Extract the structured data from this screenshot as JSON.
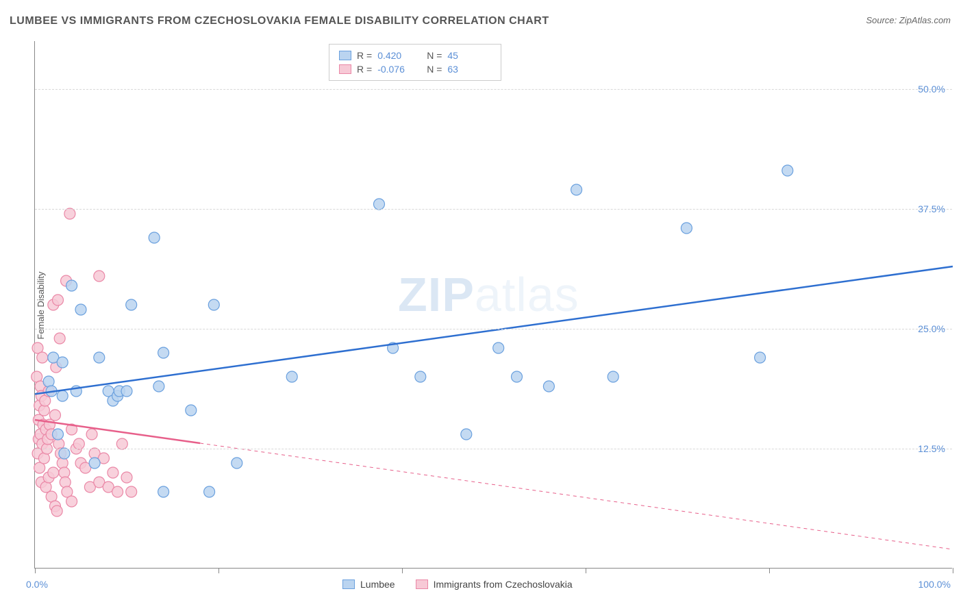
{
  "title": "LUMBEE VS IMMIGRANTS FROM CZECHOSLOVAKIA FEMALE DISABILITY CORRELATION CHART",
  "source": "Source: ZipAtlas.com",
  "y_axis_label": "Female Disability",
  "watermark_bold": "ZIP",
  "watermark_light": "atlas",
  "chart": {
    "type": "scatter",
    "background_color": "#ffffff",
    "grid_color": "#d8d8d8",
    "axis_color": "#888888",
    "tick_label_color": "#5b8fd6",
    "xlim": [
      0,
      100
    ],
    "ylim": [
      0,
      55
    ],
    "y_ticks": [
      12.5,
      25.0,
      37.5,
      50.0
    ],
    "y_tick_labels": [
      "12.5%",
      "25.0%",
      "37.5%",
      "50.0%"
    ],
    "x_ticks": [
      0,
      20,
      40,
      60,
      80,
      100
    ],
    "x_start_label": "0.0%",
    "x_end_label": "100.0%",
    "marker_radius": 8,
    "marker_stroke_width": 1.2,
    "line_width": 2.5,
    "series": [
      {
        "name": "Lumbee",
        "fill_color": "#bad4f0",
        "stroke_color": "#6aa0de",
        "line_color": "#2e6fd0",
        "R": "0.420",
        "N": "45",
        "regression": {
          "x1": 0,
          "y1": 18.2,
          "x2": 100,
          "y2": 31.5,
          "dashed": false,
          "solid_until_x": 100
        },
        "points": [
          [
            1.5,
            19.5
          ],
          [
            1.8,
            18.5
          ],
          [
            2.0,
            22.0
          ],
          [
            2.5,
            14.0
          ],
          [
            3.0,
            18.0
          ],
          [
            3.0,
            21.5
          ],
          [
            3.2,
            12.0
          ],
          [
            4.0,
            29.5
          ],
          [
            4.5,
            18.5
          ],
          [
            5.0,
            27.0
          ],
          [
            6.5,
            11.0
          ],
          [
            7.0,
            22.0
          ],
          [
            8.0,
            18.5
          ],
          [
            8.5,
            17.5
          ],
          [
            9.0,
            18.0
          ],
          [
            9.2,
            18.5
          ],
          [
            10.0,
            18.5
          ],
          [
            10.5,
            27.5
          ],
          [
            13.0,
            34.5
          ],
          [
            13.5,
            19.0
          ],
          [
            14.0,
            22.5
          ],
          [
            14.0,
            8.0
          ],
          [
            17.0,
            16.5
          ],
          [
            19.0,
            8.0
          ],
          [
            19.5,
            27.5
          ],
          [
            22.0,
            11.0
          ],
          [
            28.0,
            20.0
          ],
          [
            37.5,
            38.0
          ],
          [
            39.0,
            23.0
          ],
          [
            42.0,
            20.0
          ],
          [
            47.0,
            14.0
          ],
          [
            50.5,
            23.0
          ],
          [
            52.5,
            20.0
          ],
          [
            56.0,
            19.0
          ],
          [
            59.0,
            39.5
          ],
          [
            63.0,
            20.0
          ],
          [
            71.0,
            35.5
          ],
          [
            79.0,
            22.0
          ],
          [
            82.0,
            41.5
          ]
        ]
      },
      {
        "name": "Immigrants from Czechoslovakia",
        "fill_color": "#f7c9d6",
        "stroke_color": "#ea87a6",
        "line_color": "#e75f8a",
        "R": "-0.076",
        "N": "63",
        "regression": {
          "x1": 0,
          "y1": 15.5,
          "x2": 100,
          "y2": 2.0,
          "dashed": true,
          "solid_until_x": 18
        },
        "points": [
          [
            0.2,
            20.0
          ],
          [
            0.3,
            23.0
          ],
          [
            0.3,
            12.0
          ],
          [
            0.4,
            13.5
          ],
          [
            0.4,
            15.5
          ],
          [
            0.5,
            17.0
          ],
          [
            0.5,
            10.5
          ],
          [
            0.6,
            19.0
          ],
          [
            0.6,
            14.0
          ],
          [
            0.7,
            9.0
          ],
          [
            0.7,
            18.0
          ],
          [
            0.8,
            22.0
          ],
          [
            0.8,
            13.0
          ],
          [
            0.9,
            15.0
          ],
          [
            1.0,
            11.5
          ],
          [
            1.0,
            16.5
          ],
          [
            1.1,
            17.5
          ],
          [
            1.2,
            14.5
          ],
          [
            1.2,
            8.5
          ],
          [
            1.3,
            12.5
          ],
          [
            1.4,
            13.5
          ],
          [
            1.5,
            18.5
          ],
          [
            1.5,
            9.5
          ],
          [
            1.6,
            15.0
          ],
          [
            1.8,
            7.5
          ],
          [
            1.8,
            14.0
          ],
          [
            2.0,
            27.5
          ],
          [
            2.0,
            10.0
          ],
          [
            2.2,
            16.0
          ],
          [
            2.2,
            6.5
          ],
          [
            2.3,
            21.0
          ],
          [
            2.4,
            6.0
          ],
          [
            2.5,
            28.0
          ],
          [
            2.6,
            13.0
          ],
          [
            2.7,
            24.0
          ],
          [
            2.8,
            12.0
          ],
          [
            3.0,
            11.0
          ],
          [
            3.2,
            10.0
          ],
          [
            3.3,
            9.0
          ],
          [
            3.4,
            30.0
          ],
          [
            3.5,
            8.0
          ],
          [
            3.8,
            37.0
          ],
          [
            4.0,
            14.5
          ],
          [
            4.0,
            7.0
          ],
          [
            4.5,
            12.5
          ],
          [
            4.8,
            13.0
          ],
          [
            5.0,
            11.0
          ],
          [
            5.5,
            10.5
          ],
          [
            6.0,
            8.5
          ],
          [
            6.2,
            14.0
          ],
          [
            6.5,
            12.0
          ],
          [
            7.0,
            9.0
          ],
          [
            7.0,
            30.5
          ],
          [
            7.5,
            11.5
          ],
          [
            8.0,
            8.5
          ],
          [
            8.5,
            10.0
          ],
          [
            9.0,
            8.0
          ],
          [
            9.5,
            13.0
          ],
          [
            10.0,
            9.5
          ],
          [
            10.5,
            8.0
          ]
        ]
      }
    ],
    "legend_bottom": [
      "Lumbee",
      "Immigrants from Czechoslovakia"
    ]
  }
}
